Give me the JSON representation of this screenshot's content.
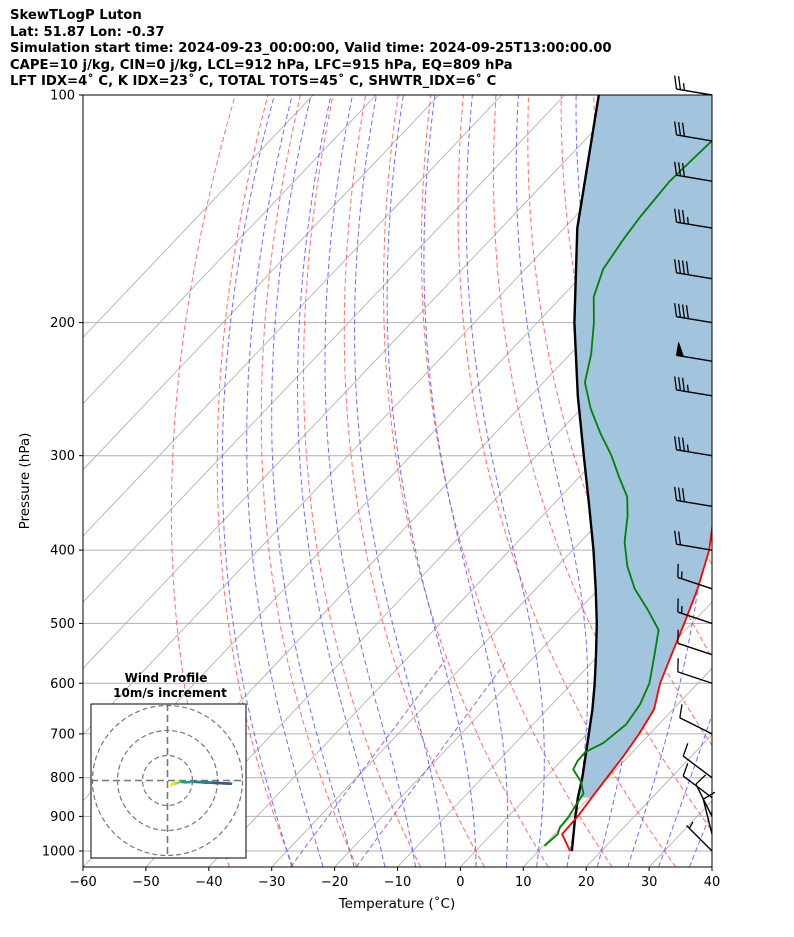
{
  "header": {
    "line1": "SkewTLogP Luton",
    "line2": "Lat: 51.87   Lon: -0.37",
    "line3": "Simulation start time: 2024-09-23_00:00:00, Valid time: 2024-09-25T13:00:00.00",
    "line4": "CAPE=10 j/kg, CIN=0 j/kg, LCL=912 hPa, LFC=915 hPa, EQ=809 hPa",
    "line5": "LFT IDX=4˚ C, K IDX=23˚ C, TOTAL TOTS=45˚ C, SHWTR_IDX=6˚ C"
  },
  "chart_data": {
    "type": "skewt",
    "xlabel": "Temperature (˚C)",
    "ylabel": "Pressure (hPa)",
    "xlim": [
      -60,
      40
    ],
    "ylim": [
      1050,
      100
    ],
    "y_log_scale": true,
    "grid": true,
    "x_ticks": [
      -60,
      -50,
      -40,
      -30,
      -20,
      -10,
      0,
      10,
      20,
      30,
      40
    ],
    "x_tick_labels": [
      "−60",
      "−50",
      "−40",
      "−30",
      "−20",
      "−10",
      "0",
      "10",
      "20",
      "30",
      "40"
    ],
    "y_ticks": [
      1000,
      900,
      800,
      700,
      600,
      500,
      400,
      300,
      200,
      100
    ],
    "y_tick_labels": [
      "1000",
      "900",
      "800",
      "700",
      "600",
      "500",
      "400",
      "300",
      "200",
      "100"
    ],
    "colors": {
      "temperature": "#ff0000",
      "dewpoint": "#008000",
      "parcel": "#000000",
      "cape_fill": "#a3c4dd",
      "dry_adiabats": "#ff5555",
      "moist_adiabats": "#5555ff",
      "mixing_ratio": "#9933cc",
      "isotherms": "#aaaaaa"
    },
    "series": [
      {
        "key": "temperature",
        "points": [
          [
            1000,
            15
          ],
          [
            950,
            11.2
          ],
          [
            900,
            11
          ],
          [
            850,
            10.4
          ],
          [
            800,
            9.8
          ],
          [
            750,
            9.2
          ],
          [
            700,
            8.3
          ],
          [
            650,
            7
          ],
          [
            600,
            4
          ],
          [
            550,
            1.5
          ],
          [
            500,
            -1.2
          ],
          [
            450,
            -4.3
          ],
          [
            400,
            -8.3
          ],
          [
            350,
            -14
          ],
          [
            320,
            -18.8
          ],
          [
            300,
            -21.5
          ],
          [
            280,
            -22.2
          ],
          [
            260,
            -22.5
          ],
          [
            240,
            -24.2
          ],
          [
            220,
            -27
          ],
          [
            200,
            -31
          ],
          [
            180,
            -33.2
          ],
          [
            160,
            -36.4
          ],
          [
            140,
            -40.9
          ],
          [
            130,
            -43.2
          ],
          [
            120,
            -44.6
          ],
          [
            110,
            -45.2
          ],
          [
            100,
            -48.5
          ]
        ]
      },
      {
        "key": "dewpoint",
        "points": [
          [
            985,
            10.2
          ],
          [
            950,
            10.5
          ],
          [
            930,
            9.8
          ],
          [
            900,
            9.6
          ],
          [
            870,
            9
          ],
          [
            840,
            8.5
          ],
          [
            810,
            6.3
          ],
          [
            780,
            3.2
          ],
          [
            760,
            2.6
          ],
          [
            740,
            2.5
          ],
          [
            720,
            4
          ],
          [
            680,
            4.8
          ],
          [
            640,
            4
          ],
          [
            600,
            2.3
          ],
          [
            550,
            -1.2
          ],
          [
            510,
            -4.3
          ],
          [
            480,
            -9
          ],
          [
            450,
            -14.3
          ],
          [
            420,
            -18.9
          ],
          [
            390,
            -23
          ],
          [
            360,
            -26.5
          ],
          [
            340,
            -29.4
          ],
          [
            320,
            -33.7
          ],
          [
            300,
            -38.1
          ],
          [
            280,
            -43.3
          ],
          [
            260,
            -48.5
          ],
          [
            240,
            -53.4
          ],
          [
            220,
            -56.7
          ],
          [
            200,
            -61
          ],
          [
            185,
            -64.9
          ],
          [
            170,
            -67.6
          ],
          [
            155,
            -68.9
          ],
          [
            145,
            -69.6
          ],
          [
            130,
            -70.3
          ],
          [
            115,
            -69.7
          ],
          [
            100,
            -71.8
          ]
        ]
      },
      {
        "key": "parcel",
        "points": [
          [
            1000,
            15.3
          ],
          [
            912,
            11.2
          ],
          [
            850,
            8.2
          ],
          [
            800,
            5.9
          ],
          [
            750,
            3.2
          ],
          [
            700,
            0.3
          ],
          [
            650,
            -2.8
          ],
          [
            600,
            -6.4
          ],
          [
            550,
            -10.5
          ],
          [
            500,
            -15.1
          ],
          [
            450,
            -20.5
          ],
          [
            400,
            -26.7
          ],
          [
            350,
            -34
          ],
          [
            300,
            -42.5
          ],
          [
            250,
            -52.5
          ],
          [
            200,
            -64.1
          ],
          [
            150,
            -77.9
          ],
          [
            100,
            -94.6
          ]
        ]
      }
    ],
    "wind_barbs": [
      {
        "p": 1000,
        "u": -2,
        "v": 2,
        "speed_kt": 7
      },
      {
        "p": 950,
        "u": -1,
        "v": 4,
        "speed_kt": 12
      },
      {
        "p": 900,
        "u": -2,
        "v": 4,
        "speed_kt": 10
      },
      {
        "p": 850,
        "u": -4,
        "v": 3,
        "speed_kt": 10
      },
      {
        "p": 800,
        "u": -4,
        "v": 3,
        "speed_kt": 10
      },
      {
        "p": 700,
        "u": -6,
        "v": 3,
        "speed_kt": 10
      },
      {
        "p": 600,
        "u": -6,
        "v": 2,
        "speed_kt": 10
      },
      {
        "p": 550,
        "u": -6,
        "v": 2,
        "speed_kt": 10
      },
      {
        "p": 500,
        "u": -6,
        "v": 2,
        "speed_kt": 15
      },
      {
        "p": 450,
        "u": -6,
        "v": 2,
        "speed_kt": 15
      },
      {
        "p": 400,
        "u": -6,
        "v": 1,
        "speed_kt": 20
      },
      {
        "p": 350,
        "u": -6,
        "v": 1,
        "speed_kt": 30
      },
      {
        "p": 300,
        "u": -6,
        "v": 1,
        "speed_kt": 35
      },
      {
        "p": 250,
        "u": -6,
        "v": 1,
        "speed_kt": 35
      },
      {
        "p": 225,
        "u": -6,
        "v": 1,
        "speed_kt": 50
      },
      {
        "p": 200,
        "u": -6,
        "v": 1,
        "speed_kt": 40
      },
      {
        "p": 175,
        "u": -6,
        "v": 1,
        "speed_kt": 40
      },
      {
        "p": 150,
        "u": -6,
        "v": 1,
        "speed_kt": 35
      },
      {
        "p": 130,
        "u": -6,
        "v": 1,
        "speed_kt": 30
      },
      {
        "p": 115,
        "u": -6,
        "v": 1,
        "speed_kt": 30
      },
      {
        "p": 100,
        "u": -6,
        "v": 1,
        "speed_kt": 25
      }
    ],
    "hodograph": {
      "title": "Wind Profile",
      "subtitle": "10m/s increment"
    }
  }
}
